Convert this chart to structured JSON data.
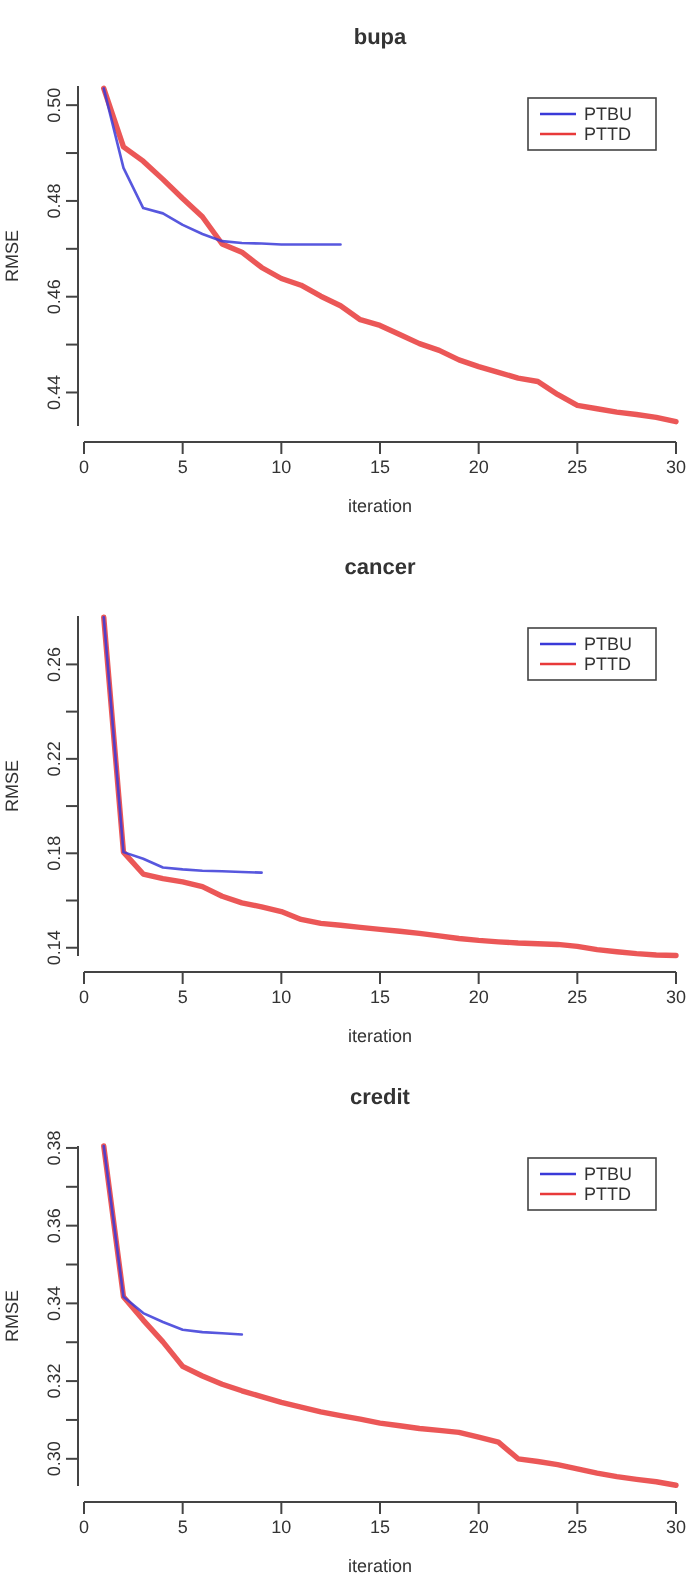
{
  "chart_data": [
    {
      "type": "line",
      "title": "bupa",
      "xlabel": "iteration",
      "ylabel": "RMSE",
      "xlim": [
        0,
        30
      ],
      "xticks": [
        0,
        5,
        10,
        15,
        20,
        25,
        30
      ],
      "ylim": [
        0.433,
        0.504
      ],
      "yticks": [
        {
          "value": 0.44,
          "label": "0.44"
        },
        {
          "value": 0.45,
          "label": null
        },
        {
          "value": 0.46,
          "label": "0.46"
        },
        {
          "value": 0.47,
          "label": null
        },
        {
          "value": 0.48,
          "label": "0.48"
        },
        {
          "value": 0.49,
          "label": null
        },
        {
          "value": 0.5,
          "label": "0.50"
        }
      ],
      "legend": "top right",
      "series": [
        {
          "name": "PTBU",
          "color": "#3a3ad8",
          "x": [
            1,
            2,
            3,
            4,
            5,
            6,
            7,
            8,
            9,
            10,
            11,
            12,
            13
          ],
          "values": [
            0.5035,
            0.4869,
            0.4785,
            0.4774,
            0.475,
            0.4731,
            0.4716,
            0.4712,
            0.4711,
            0.4709,
            0.4709,
            0.4709,
            0.4709
          ]
        },
        {
          "name": "PTTD",
          "color": "#e83a3a",
          "x": [
            1,
            2,
            3,
            4,
            5,
            6,
            7,
            8,
            9,
            10,
            11,
            12,
            13,
            14,
            15,
            16,
            17,
            18,
            19,
            20,
            21,
            22,
            23,
            24,
            25,
            26,
            27,
            28,
            29,
            30
          ],
          "values": [
            0.5035,
            0.4913,
            0.4883,
            0.4845,
            0.4805,
            0.4767,
            0.471,
            0.4693,
            0.4661,
            0.4638,
            0.4624,
            0.4601,
            0.4581,
            0.4552,
            0.454,
            0.4521,
            0.4502,
            0.4488,
            0.4468,
            0.4454,
            0.4442,
            0.443,
            0.4423,
            0.4396,
            0.4373,
            0.4366,
            0.4359,
            0.4354,
            0.4348,
            0.4339
          ]
        }
      ]
    },
    {
      "type": "line",
      "title": "cancer",
      "xlabel": "iteration",
      "ylabel": "RMSE",
      "xlim": [
        0,
        30
      ],
      "xticks": [
        0,
        5,
        10,
        15,
        20,
        25,
        30
      ],
      "ylim": [
        0.1365,
        0.2805
      ],
      "yticks": [
        {
          "value": 0.14,
          "label": "0.14"
        },
        {
          "value": 0.16,
          "label": null
        },
        {
          "value": 0.18,
          "label": "0.18"
        },
        {
          "value": 0.2,
          "label": null
        },
        {
          "value": 0.22,
          "label": "0.22"
        },
        {
          "value": 0.24,
          "label": null
        },
        {
          "value": 0.26,
          "label": "0.26"
        }
      ],
      "legend": "top right",
      "series": [
        {
          "name": "PTBU",
          "color": "#3a3ad8",
          "x": [
            1,
            2,
            3,
            4,
            5,
            6,
            7,
            8,
            9
          ],
          "values": [
            0.28,
            0.1805,
            0.1777,
            0.174,
            0.1732,
            0.1726,
            0.1724,
            0.1721,
            0.1718
          ]
        },
        {
          "name": "PTTD",
          "color": "#e83a3a",
          "x": [
            1,
            2,
            3,
            4,
            5,
            6,
            7,
            8,
            9,
            10,
            11,
            12,
            13,
            14,
            15,
            16,
            17,
            18,
            19,
            20,
            21,
            22,
            23,
            24,
            25,
            26,
            27,
            28,
            29,
            30
          ],
          "values": [
            0.28,
            0.1805,
            0.1712,
            0.1693,
            0.1679,
            0.1659,
            0.1618,
            0.159,
            0.1573,
            0.1553,
            0.152,
            0.1503,
            0.1495,
            0.1486,
            0.1478,
            0.147,
            0.1461,
            0.145,
            0.1439,
            0.1431,
            0.1425,
            0.142,
            0.1417,
            0.1414,
            0.1406,
            0.1392,
            0.1383,
            0.1375,
            0.1369,
            0.1367
          ]
        }
      ]
    },
    {
      "type": "line",
      "title": "credit",
      "xlabel": "iteration",
      "ylabel": "RMSE",
      "xlim": [
        0,
        30
      ],
      "xticks": [
        0,
        5,
        10,
        15,
        20,
        25,
        30
      ],
      "ylim": [
        0.293,
        0.3805
      ],
      "yticks": [
        {
          "value": 0.3,
          "label": "0.30"
        },
        {
          "value": 0.31,
          "label": null
        },
        {
          "value": 0.32,
          "label": "0.32"
        },
        {
          "value": 0.33,
          "label": null
        },
        {
          "value": 0.34,
          "label": "0.34"
        },
        {
          "value": 0.35,
          "label": null
        },
        {
          "value": 0.36,
          "label": "0.36"
        },
        {
          "value": 0.37,
          "label": null
        },
        {
          "value": 0.38,
          "label": "0.38"
        }
      ],
      "legend": "top right",
      "series": [
        {
          "name": "PTBU",
          "color": "#3a3ad8",
          "x": [
            1,
            2,
            3,
            4,
            5,
            6,
            7,
            8
          ],
          "values": [
            0.3805,
            0.3417,
            0.3375,
            0.3352,
            0.3332,
            0.3326,
            0.3323,
            0.332
          ]
        },
        {
          "name": "PTTD",
          "color": "#e83a3a",
          "x": [
            1,
            2,
            3,
            4,
            5,
            6,
            7,
            8,
            9,
            10,
            11,
            12,
            13,
            14,
            15,
            16,
            17,
            18,
            19,
            20,
            21,
            22,
            23,
            24,
            25,
            26,
            27,
            28,
            29,
            30
          ],
          "values": [
            0.3805,
            0.3417,
            0.3357,
            0.3301,
            0.3238,
            0.3213,
            0.3192,
            0.3175,
            0.316,
            0.3145,
            0.3133,
            0.3121,
            0.3111,
            0.3102,
            0.3092,
            0.3085,
            0.3078,
            0.3073,
            0.3068,
            0.3056,
            0.3043,
            0.3,
            0.2993,
            0.2985,
            0.2974,
            0.2963,
            0.2954,
            0.2947,
            0.2941,
            0.2932
          ]
        }
      ]
    }
  ]
}
